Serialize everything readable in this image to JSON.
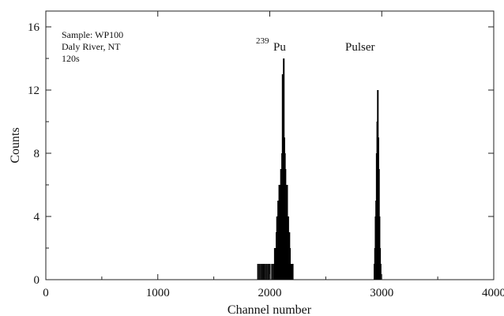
{
  "chart_data": {
    "type": "bar",
    "xlabel": "Channel number",
    "ylabel": "Counts",
    "xlim": [
      0,
      4000
    ],
    "ylim": [
      0,
      17
    ],
    "x_ticks": [
      0,
      1000,
      2000,
      3000,
      4000
    ],
    "y_ticks": [
      0,
      4,
      8,
      12,
      16
    ],
    "grid": false,
    "annotations": {
      "sample_lines": [
        "Sample: WP100",
        "Daly River, NT",
        "120s"
      ],
      "pu_superscript": "239",
      "pu_label": "Pu",
      "pulser_label": "Pulser"
    },
    "bar_color": "#000000",
    "bars": [
      {
        "x": 1895,
        "y": 1
      },
      {
        "x": 1910,
        "y": 1
      },
      {
        "x": 1925,
        "y": 1
      },
      {
        "x": 1940,
        "y": 1
      },
      {
        "x": 1955,
        "y": 1
      },
      {
        "x": 1970,
        "y": 1
      },
      {
        "x": 1985,
        "y": 1
      },
      {
        "x": 2000,
        "y": 1
      },
      {
        "x": 2020,
        "y": 1
      },
      {
        "x": 2035,
        "y": 1
      },
      {
        "x": 2045,
        "y": 2
      },
      {
        "x": 2050,
        "y": 2
      },
      {
        "x": 2055,
        "y": 1
      },
      {
        "x": 2060,
        "y": 3
      },
      {
        "x": 2065,
        "y": 4
      },
      {
        "x": 2070,
        "y": 2
      },
      {
        "x": 2075,
        "y": 5
      },
      {
        "x": 2080,
        "y": 4
      },
      {
        "x": 2085,
        "y": 6
      },
      {
        "x": 2090,
        "y": 6
      },
      {
        "x": 2095,
        "y": 5
      },
      {
        "x": 2100,
        "y": 7
      },
      {
        "x": 2105,
        "y": 6
      },
      {
        "x": 2110,
        "y": 8
      },
      {
        "x": 2115,
        "y": 13
      },
      {
        "x": 2120,
        "y": 9
      },
      {
        "x": 2125,
        "y": 14
      },
      {
        "x": 2130,
        "y": 9
      },
      {
        "x": 2135,
        "y": 8
      },
      {
        "x": 2140,
        "y": 7
      },
      {
        "x": 2145,
        "y": 6
      },
      {
        "x": 2150,
        "y": 5
      },
      {
        "x": 2155,
        "y": 6
      },
      {
        "x": 2160,
        "y": 4
      },
      {
        "x": 2165,
        "y": 4
      },
      {
        "x": 2170,
        "y": 3
      },
      {
        "x": 2175,
        "y": 3
      },
      {
        "x": 2180,
        "y": 2
      },
      {
        "x": 2185,
        "y": 1
      },
      {
        "x": 2190,
        "y": 1
      },
      {
        "x": 2195,
        "y": 1
      },
      {
        "x": 2200,
        "y": 1
      },
      {
        "x": 2205,
        "y": 1
      },
      {
        "x": 2935,
        "y": 1
      },
      {
        "x": 2940,
        "y": 2
      },
      {
        "x": 2945,
        "y": 4
      },
      {
        "x": 2950,
        "y": 5
      },
      {
        "x": 2955,
        "y": 8
      },
      {
        "x": 2960,
        "y": 10
      },
      {
        "x": 2965,
        "y": 12
      },
      {
        "x": 2970,
        "y": 9
      },
      {
        "x": 2975,
        "y": 7
      },
      {
        "x": 2980,
        "y": 4
      },
      {
        "x": 2985,
        "y": 2
      },
      {
        "x": 2990,
        "y": 1
      }
    ]
  }
}
